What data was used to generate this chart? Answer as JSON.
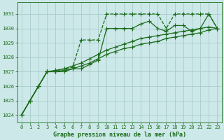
{
  "bg_color": "#cce8e8",
  "grid_color": "#aacccc",
  "line_color": "#1a6b1a",
  "title": "Graphe pression niveau de la mer (hPa)",
  "xlim": [
    -0.5,
    23.5
  ],
  "ylim": [
    1023.5,
    1031.8
  ],
  "yticks": [
    1024,
    1025,
    1026,
    1027,
    1028,
    1029,
    1030,
    1031
  ],
  "xticks": [
    0,
    1,
    2,
    3,
    4,
    5,
    6,
    7,
    8,
    9,
    10,
    11,
    12,
    13,
    14,
    15,
    16,
    17,
    18,
    19,
    20,
    21,
    22,
    23
  ],
  "series": [
    {
      "x": [
        0,
        1,
        2,
        3,
        4,
        5,
        6,
        7,
        8,
        9,
        10,
        11,
        12,
        13,
        14,
        15,
        16,
        17,
        18,
        19,
        20,
        21,
        22,
        23
      ],
      "y": [
        1024.0,
        1025.0,
        1026.0,
        1027.0,
        1027.0,
        1027.2,
        1027.3,
        1029.2,
        1029.2,
        1029.2,
        1031.0,
        1031.0,
        1031.0,
        1031.0,
        1031.0,
        1031.0,
        1031.0,
        1030.0,
        1031.0,
        1031.0,
        1031.0,
        1031.0,
        1031.0,
        1030.0
      ],
      "marker": "+",
      "markersize": 4.0,
      "linewidth": 0.9,
      "linestyle": "--"
    },
    {
      "x": [
        0,
        1,
        2,
        3,
        4,
        5,
        6,
        7,
        8,
        9,
        10,
        11,
        12,
        13,
        14,
        15,
        16,
        17,
        18,
        19,
        20,
        21,
        22,
        23
      ],
      "y": [
        1024.0,
        1025.0,
        1026.0,
        1027.0,
        1027.0,
        1027.0,
        1027.2,
        1027.2,
        1027.5,
        1027.8,
        1030.0,
        1030.0,
        1030.0,
        1030.0,
        1030.3,
        1030.5,
        1030.0,
        1029.8,
        1030.2,
        1030.2,
        1029.8,
        1030.0,
        1031.0,
        1030.0
      ],
      "marker": "+",
      "markersize": 4.0,
      "linewidth": 0.9,
      "linestyle": "-"
    },
    {
      "x": [
        0,
        1,
        2,
        3,
        4,
        5,
        6,
        7,
        8,
        9,
        10,
        11,
        12,
        13,
        14,
        15,
        16,
        17,
        18,
        19,
        20,
        21,
        22,
        23
      ],
      "y": [
        1024.0,
        1025.0,
        1026.0,
        1027.0,
        1027.1,
        1027.2,
        1027.4,
        1027.6,
        1027.9,
        1028.2,
        1028.5,
        1028.7,
        1028.9,
        1029.1,
        1029.3,
        1029.4,
        1029.5,
        1029.6,
        1029.7,
        1029.8,
        1029.9,
        1030.0,
        1030.1,
        1030.0
      ],
      "marker": "+",
      "markersize": 4.0,
      "linewidth": 0.9,
      "linestyle": "-"
    },
    {
      "x": [
        0,
        1,
        2,
        3,
        4,
        5,
        6,
        7,
        8,
        9,
        10,
        11,
        12,
        13,
        14,
        15,
        16,
        17,
        18,
        19,
        20,
        21,
        22,
        23
      ],
      "y": [
        1024.0,
        1025.0,
        1026.0,
        1027.0,
        1027.0,
        1027.1,
        1027.2,
        1027.4,
        1027.6,
        1027.9,
        1028.2,
        1028.4,
        1028.6,
        1028.7,
        1028.9,
        1029.0,
        1029.1,
        1029.3,
        1029.4,
        1029.5,
        1029.6,
        1029.7,
        1029.9,
        1030.0
      ],
      "marker": "+",
      "markersize": 4.0,
      "linewidth": 0.9,
      "linestyle": "-"
    }
  ]
}
